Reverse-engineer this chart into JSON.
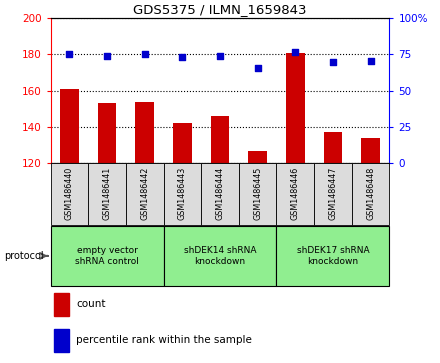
{
  "title": "GDS5375 / ILMN_1659843",
  "samples": [
    "GSM1486440",
    "GSM1486441",
    "GSM1486442",
    "GSM1486443",
    "GSM1486444",
    "GSM1486445",
    "GSM1486446",
    "GSM1486447",
    "GSM1486448"
  ],
  "count_values": [
    161,
    153,
    154,
    142,
    146,
    127,
    181,
    137,
    134
  ],
  "percentile_values": [
    75.5,
    74.0,
    75.0,
    73.5,
    74.0,
    66.0,
    76.5,
    70.0,
    70.5
  ],
  "ylim_left": [
    120,
    200
  ],
  "ylim_right": [
    0,
    100
  ],
  "yticks_left": [
    120,
    140,
    160,
    180,
    200
  ],
  "yticks_right": [
    0,
    25,
    50,
    75,
    100
  ],
  "bar_color": "#CC0000",
  "dot_color": "#0000CC",
  "groups": [
    {
      "label": "empty vector\nshRNA control",
      "start": 0,
      "end": 3,
      "color": "#90EE90"
    },
    {
      "label": "shDEK14 shRNA\nknockdown",
      "start": 3,
      "end": 6,
      "color": "#90EE90"
    },
    {
      "label": "shDEK17 shRNA\nknockdown",
      "start": 6,
      "end": 9,
      "color": "#90EE90"
    }
  ],
  "legend_count_label": "count",
  "legend_percentile_label": "percentile rank within the sample",
  "protocol_label": "protocol",
  "bar_width": 0.5,
  "sample_bg_color": "#DCDCDC",
  "fig_width": 4.4,
  "fig_height": 3.63,
  "dpi": 100
}
